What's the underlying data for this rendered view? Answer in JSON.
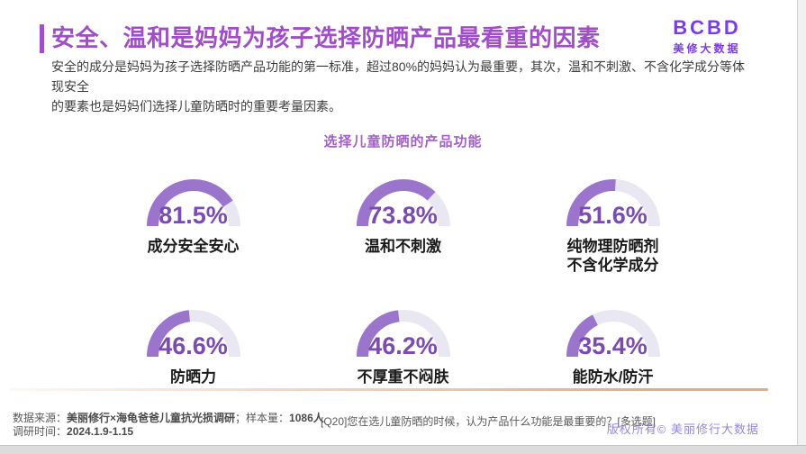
{
  "page": {
    "title": "安全、温和是妈妈为孩子选择防晒产品最看重的因素",
    "description_line1": "安全的成分是妈妈为孩子选择防晒产品功能的第一标准，超过80%的妈妈认为最重要，其次，温和不刺激、不含化学成分等体现安全",
    "description_line2": "的要素也是妈妈们选择儿童防晒时的重要考量因素。"
  },
  "logo": {
    "brand": "BCBD",
    "name": "美修大数据"
  },
  "chart_data": {
    "type": "gauge",
    "title": "选择儿童防晒的产品功能",
    "unit": "%",
    "geometry": "half-donut, filled clockwise from left, 0–100% = 180°",
    "items": [
      {
        "label": "成分安全安心",
        "value": 81.5
      },
      {
        "label": "温和不刺激",
        "value": 73.8
      },
      {
        "label": "纯物理防晒剂\n不含化学成分",
        "value": 51.6
      },
      {
        "label": "防晒力",
        "value": 46.6
      },
      {
        "label": "不厚重不闷肤",
        "value": 46.2
      },
      {
        "label": "能防水/防汗",
        "value": 35.4
      }
    ],
    "colors": {
      "arc_fill": "#9b74cc",
      "arc_track": "#e9e8f2",
      "value_text": "#7b4baf"
    },
    "legend": "none",
    "layout": "2 rows x 3 columns"
  },
  "footer": {
    "source_prefix": "数据来源：",
    "source_name": "美丽修行×海龟爸爸儿童抗光损调研",
    "source_mid": "；样本量：",
    "sample_size": "1086人",
    "time_prefix": "调研时间：",
    "time_value": "2024.1.9-1.15",
    "question": "[Q20]您在选儿童防晒的时候，认为产品什么功能是最重要的？[多选题]",
    "copyright": "版权所有© 美丽修行大数据"
  },
  "theme_colors": {
    "title_purple": "#a04ec6",
    "accent_bar": "#a050c8",
    "logo_violet": "#7b3bed",
    "divider_orange": "#f2a878",
    "copyright_lilac": "#9488dd"
  }
}
